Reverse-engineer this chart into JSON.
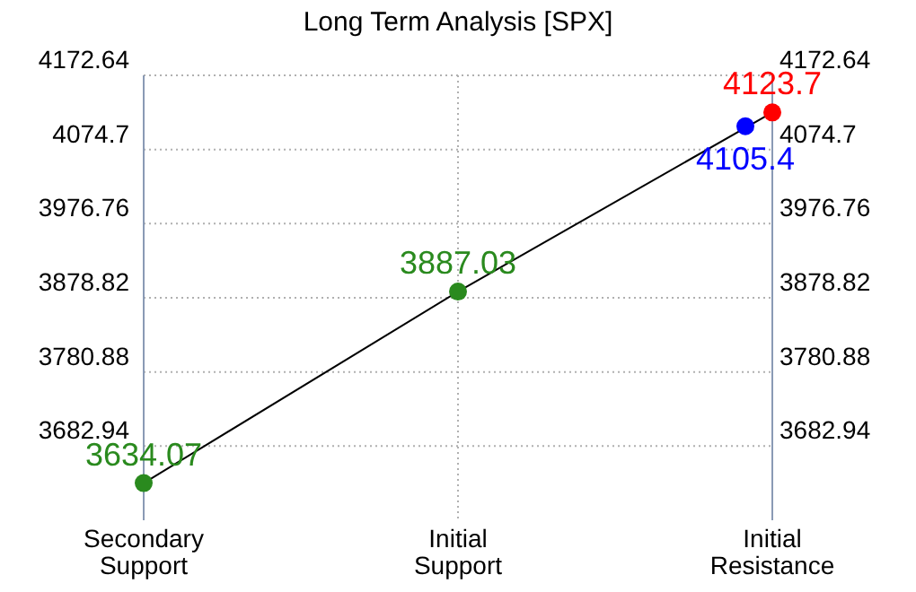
{
  "chart_data": {
    "type": "line",
    "title": "Long Term Analysis [SPX]",
    "categories": [
      "Secondary Support",
      "Initial Support",
      "Initial Resistance"
    ],
    "series": [
      {
        "color": "#000000",
        "colors": [
          "#2a8a1e",
          "#2a8a1e",
          "#ff0000"
        ],
        "values": [
          3634.07,
          3887.03,
          4123.7
        ],
        "marker": "circle"
      },
      {
        "type": "scatter",
        "color": "#0000ff",
        "values": [
          null,
          null,
          4105.4
        ],
        "marker": "circle"
      }
    ],
    "ylim": [
      3585,
      4172.64
    ],
    "yticks": [
      3682.94,
      3780.88,
      3878.82,
      3976.76,
      4074.7,
      4172.64
    ],
    "y2lim": [
      3585,
      4172.64
    ],
    "y2ticks": [
      3682.94,
      3780.88,
      3878.82,
      3976.76,
      4074.7,
      4172.64
    ],
    "grid": true,
    "data_labels": true
  }
}
